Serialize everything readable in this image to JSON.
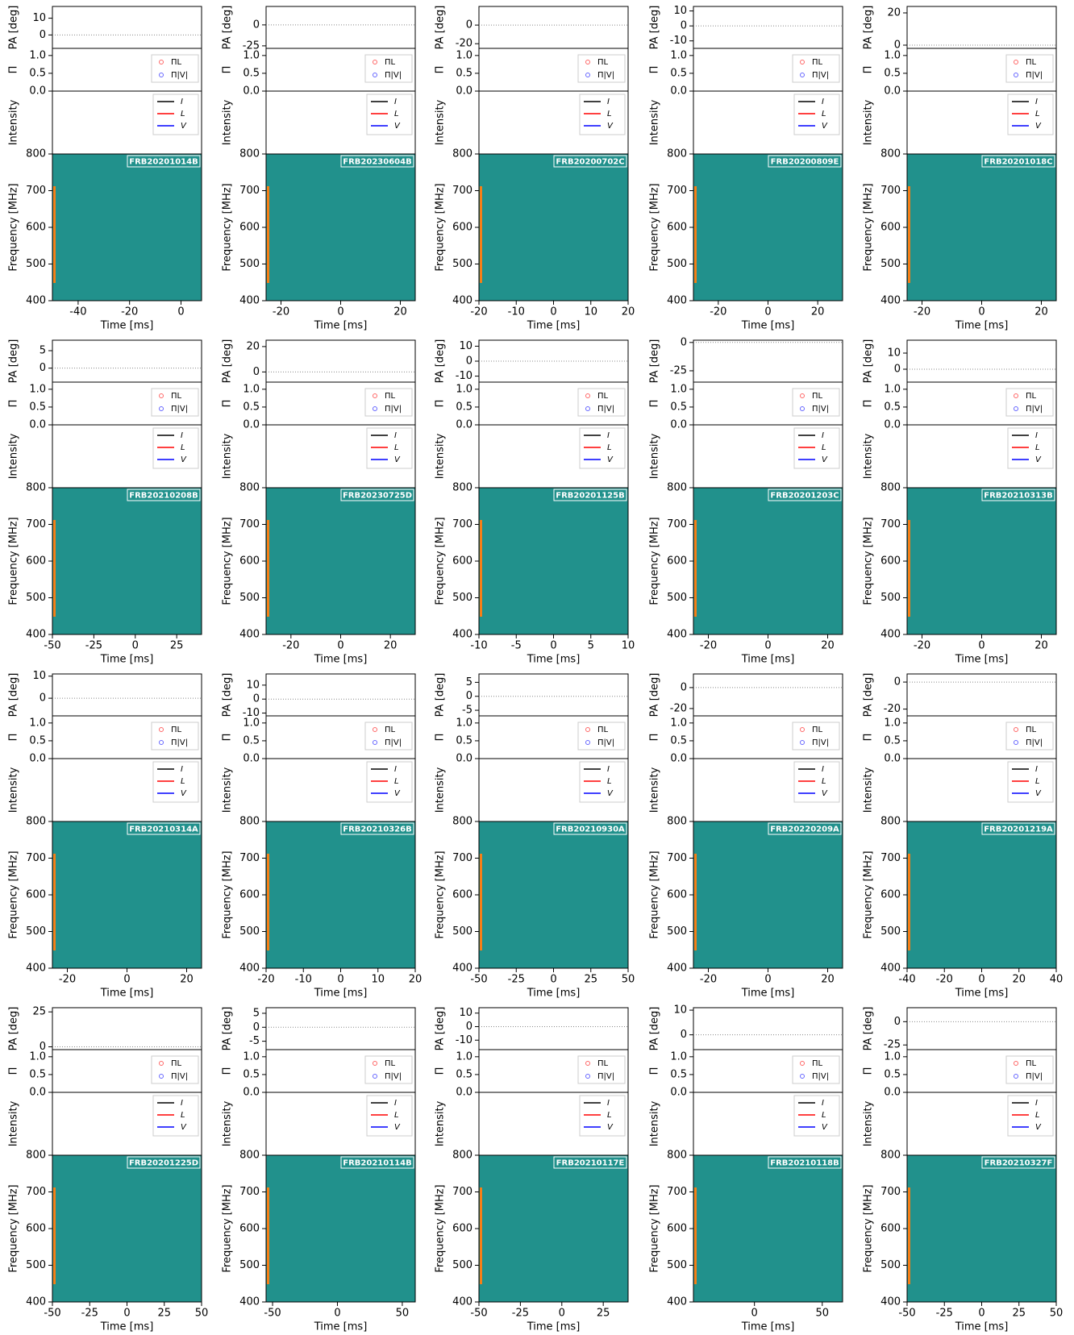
{
  "labels": {
    "pa": "PA [deg]",
    "pi": "Π",
    "intensity": "Intensity",
    "frequency": "Frequency [MHz]",
    "time": "Time [ms]"
  },
  "pi_legend": [
    "ΠL",
    "Π|V|"
  ],
  "intensity_legend": [
    "I",
    "L",
    "V"
  ],
  "pi_ylim": [
    0,
    1.2
  ],
  "pi_yticks": [
    {
      "value": 0,
      "label": "0.0"
    },
    {
      "value": 0.5,
      "label": "0.5"
    },
    {
      "value": 1,
      "label": "1.0"
    }
  ],
  "freq_ylim": [
    400,
    800
  ],
  "freq_yticks": [
    400,
    500,
    600,
    700,
    800
  ],
  "panels": [
    {
      "name": "FRB20201014B",
      "xlim": [
        -50,
        8
      ],
      "xticks": [
        -40,
        -20,
        0
      ],
      "pa_ylim": [
        -8,
        17
      ],
      "pa_yticks": [
        0,
        10
      ]
    },
    {
      "name": "FRB20230604B",
      "xlim": [
        -25,
        25
      ],
      "xticks": [
        -20,
        0,
        20
      ],
      "pa_ylim": [
        -28,
        22
      ],
      "pa_yticks": [
        -25,
        0
      ]
    },
    {
      "name": "FRB20200702C",
      "xlim": [
        -20,
        20
      ],
      "xticks": [
        -20,
        -10,
        0,
        10,
        20
      ],
      "pa_ylim": [
        -25,
        20
      ],
      "pa_yticks": [
        -20,
        0
      ]
    },
    {
      "name": "FRB20200809E",
      "xlim": [
        -30,
        30
      ],
      "xticks": [
        -20,
        0,
        20
      ],
      "pa_ylim": [
        -15,
        13
      ],
      "pa_yticks": [
        -10,
        0,
        10
      ]
    },
    {
      "name": "FRB20201018C",
      "xlim": [
        -25,
        25
      ],
      "xticks": [
        -20,
        0,
        20
      ],
      "pa_ylim": [
        -2,
        24
      ],
      "pa_yticks": [
        0,
        20
      ]
    },
    {
      "name": "FRB20210208B",
      "xlim": [
        -50,
        40
      ],
      "xticks": [
        -50,
        -25,
        0,
        25
      ],
      "pa_ylim": [
        -4,
        8
      ],
      "pa_yticks": [
        0,
        5
      ]
    },
    {
      "name": "FRB20230725D",
      "xlim": [
        -30,
        30
      ],
      "xticks": [
        -20,
        0,
        20
      ],
      "pa_ylim": [
        -8,
        25
      ],
      "pa_yticks": [
        0,
        20
      ]
    },
    {
      "name": "FRB20201125B",
      "xlim": [
        -10,
        10
      ],
      "xticks": [
        -10,
        -5,
        0,
        5,
        10
      ],
      "pa_ylim": [
        -14,
        14
      ],
      "pa_yticks": [
        -10,
        0,
        10
      ]
    },
    {
      "name": "FRB20201203C",
      "xlim": [
        -25,
        25
      ],
      "xticks": [
        -20,
        0,
        20
      ],
      "pa_ylim": [
        -35,
        2
      ],
      "pa_yticks": [
        -25,
        0
      ]
    },
    {
      "name": "FRB20210313B",
      "xlim": [
        -25,
        25
      ],
      "xticks": [
        -20,
        0,
        20
      ],
      "pa_ylim": [
        -8,
        18
      ],
      "pa_yticks": [
        0,
        10
      ]
    },
    {
      "name": "FRB20210314A",
      "xlim": [
        -25,
        25
      ],
      "xticks": [
        -20,
        0,
        20
      ],
      "pa_ylim": [
        -8,
        11
      ],
      "pa_yticks": [
        0,
        10
      ]
    },
    {
      "name": "FRB20210326B",
      "xlim": [
        -20,
        20
      ],
      "xticks": [
        -20,
        -10,
        0,
        10,
        20
      ],
      "pa_ylim": [
        -12,
        18
      ],
      "pa_yticks": [
        -10,
        0,
        10
      ]
    },
    {
      "name": "FRB20210930A",
      "xlim": [
        -50,
        50
      ],
      "xticks": [
        -50,
        -25,
        0,
        25,
        50
      ],
      "pa_ylim": [
        -7,
        8
      ],
      "pa_yticks": [
        -5,
        0,
        5
      ]
    },
    {
      "name": "FRB20220209A",
      "xlim": [
        -25,
        25
      ],
      "xticks": [
        -20,
        0,
        20
      ],
      "pa_ylim": [
        -27,
        13
      ],
      "pa_yticks": [
        -20,
        0
      ]
    },
    {
      "name": "FRB20201219A",
      "xlim": [
        -40,
        40
      ],
      "xticks": [
        -40,
        -20,
        0,
        20,
        40
      ],
      "pa_ylim": [
        -25,
        6
      ],
      "pa_yticks": [
        -20,
        0
      ]
    },
    {
      "name": "FRB20201225D",
      "xlim": [
        -50,
        50
      ],
      "xticks": [
        -50,
        -25,
        0,
        25,
        50
      ],
      "pa_ylim": [
        -2,
        28
      ],
      "pa_yticks": [
        0,
        25
      ]
    },
    {
      "name": "FRB20210114B",
      "xlim": [
        -55,
        60
      ],
      "xticks": [
        -50,
        0,
        50
      ],
      "pa_ylim": [
        -8,
        7
      ],
      "pa_yticks": [
        -5,
        0,
        5
      ]
    },
    {
      "name": "FRB20210117E",
      "xlim": [
        -50,
        40
      ],
      "xticks": [
        -50,
        -25,
        0,
        25
      ],
      "pa_ylim": [
        -17,
        14
      ],
      "pa_yticks": [
        -10,
        0,
        10
      ]
    },
    {
      "name": "FRB20210118B",
      "xlim": [
        -45,
        65
      ],
      "xticks": [
        0,
        50
      ],
      "pa_ylim": [
        -6,
        11
      ],
      "pa_yticks": [
        0,
        10
      ]
    },
    {
      "name": "FRB20210327F",
      "xlim": [
        -50,
        50
      ],
      "xticks": [
        -50,
        -25,
        0,
        25,
        50
      ],
      "pa_ylim": [
        -30,
        15
      ],
      "pa_yticks": [
        -25,
        0
      ]
    }
  ]
}
